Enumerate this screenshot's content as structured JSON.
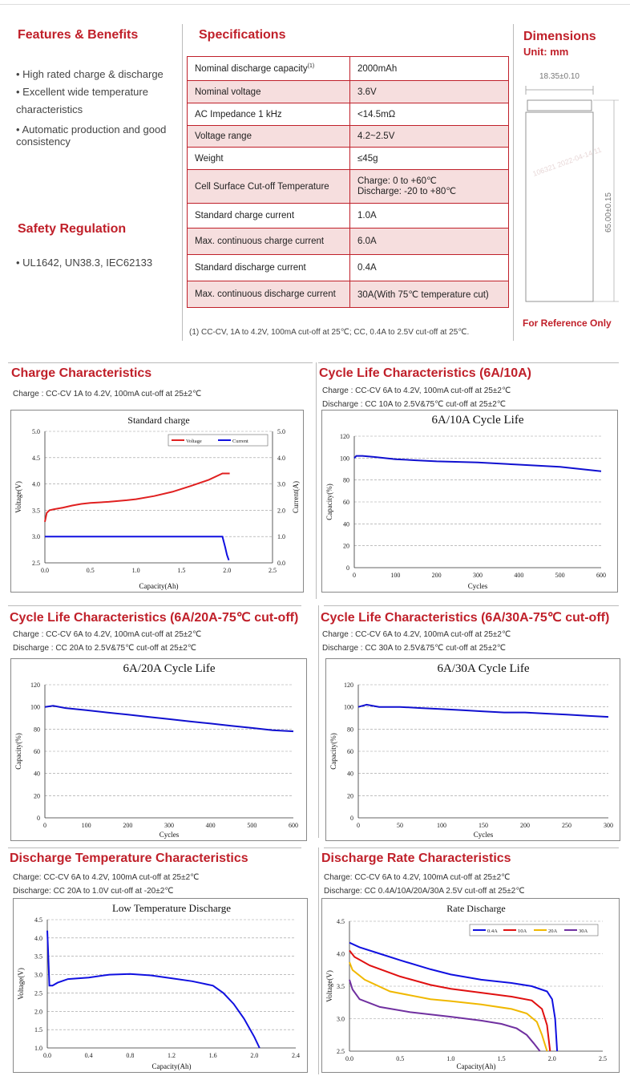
{
  "features": {
    "title": "Features & Benefits",
    "items": [
      "High rated charge & discharge",
      "Excellent wide temperature",
      "characteristics",
      "Automatic production and good consistency"
    ]
  },
  "safety": {
    "title": "Safety Regulation",
    "items": [
      "UL1642, UN38.3, IEC62133"
    ]
  },
  "specs": {
    "title": "Specifications",
    "rows": [
      {
        "label": "Nominal discharge capacity",
        "sup": "(1)",
        "value": "2000mAh"
      },
      {
        "label": "Nominal voltage",
        "value": "3.6V"
      },
      {
        "label": "AC Impedance 1 kHz",
        "value": "<14.5mΩ"
      },
      {
        "label": "Voltage range",
        "value": "4.2~2.5V"
      },
      {
        "label": "Weight",
        "value": "≤45g"
      },
      {
        "label": "Cell Surface Cut-off Temperature",
        "value": "Charge: 0 to +60℃",
        "value2": "Discharge: -20 to +80℃"
      },
      {
        "label": "Standard charge current",
        "value": "1.0A"
      },
      {
        "label": "Max. continuous charge current",
        "value": "6.0A"
      },
      {
        "label": "Standard discharge current",
        "value": "0.4A"
      },
      {
        "label": "Max. continuous discharge current",
        "value": "30A(With 75℃ temperature cut)"
      }
    ],
    "footnote": "(1)   CC-CV, 1A to 4.2V, 100mA cut-off at 25℃; CC, 0.4A to 2.5V cut-off at 25℃."
  },
  "dimensions": {
    "title": "Dimensions",
    "unit": "Unit: mm",
    "diameter": "18.35±0.10",
    "height": "65.00±0.15",
    "note": "For Reference Only",
    "watermark": "106321 2022-04-14 11"
  },
  "sections": {
    "charge": {
      "title": "Charge Characteristics",
      "sub1": "Charge : CC-CV 1A to 4.2V, 100mA cut-off at 25±2℃"
    },
    "cycle10": {
      "title": "Cycle Life Characteristics (6A/10A)",
      "sub1": "Charge : CC-CV 6A to 4.2V, 100mA cut-off at 25±2℃",
      "sub2": "Discharge : CC 10A to 2.5V&75℃ cut-off at 25±2℃"
    },
    "cycle20": {
      "title": "Cycle Life Characteristics (6A/20A-75℃ cut-off)",
      "sub1": "Charge : CC-CV 6A to 4.2V, 100mA cut-off at 25±2℃",
      "sub2": "Discharge : CC 20A to 2.5V&75℃ cut-off at 25±2℃"
    },
    "cycle30": {
      "title": "Cycle Life Characteristics (6A/30A-75℃ cut-off)",
      "sub1": "Charge : CC-CV 6A to 4.2V, 100mA cut-off at 25±2℃",
      "sub2": "Discharge : CC 30A to 2.5V&75℃ cut-off at 25±2℃"
    },
    "temp": {
      "title": "Discharge Temperature Characteristics",
      "sub1": "Charge: CC-CV 6A to 4.2V, 100mA cut-off at 25±2℃",
      "sub2": "Discharge: CC 20A to 1.0V cut-off at -20±2℃"
    },
    "rate": {
      "title": "Discharge Rate Characteristics",
      "sub1": "Charge: CC-CV 6A to 4.2V, 100mA cut-off at 25±2℃",
      "sub2": "Discharge: CC 0.4A/10A/20A/30A 2.5V cut-off at 25±2℃"
    }
  },
  "chart_data": [
    {
      "id": "charge",
      "type": "line",
      "title": "Standard charge",
      "xlabel": "Capacity(Ah)",
      "ylabel": "Voltage(V)",
      "y2label": "Current(A)",
      "xlim": [
        0,
        2.5
      ],
      "ylim": [
        2.5,
        5.0
      ],
      "y2lim": [
        0,
        5.0
      ],
      "xticks": [
        "0.0",
        "0.5",
        "1.0",
        "1.5",
        "2.0",
        "2.5"
      ],
      "yticks": [
        "2.5",
        "3.0",
        "3.5",
        "4.0",
        "4.5",
        "5.0"
      ],
      "y2ticks": [
        "0.0",
        "1.0",
        "2.0",
        "3.0",
        "4.0",
        "5.0"
      ],
      "legend": "top-right",
      "series": [
        {
          "name": "Voltage",
          "color": "#e02020",
          "axis": "y",
          "x": [
            0.0,
            0.02,
            0.05,
            0.1,
            0.2,
            0.3,
            0.4,
            0.5,
            0.7,
            0.9,
            1.0,
            1.2,
            1.4,
            1.6,
            1.8,
            1.95,
            2.0,
            2.03
          ],
          "y": [
            3.28,
            3.45,
            3.5,
            3.52,
            3.55,
            3.59,
            3.62,
            3.64,
            3.66,
            3.69,
            3.71,
            3.77,
            3.85,
            3.96,
            4.08,
            4.2,
            4.2,
            4.2
          ]
        },
        {
          "name": "Current",
          "color": "#1010e0",
          "axis": "y2",
          "x": [
            0.0,
            0.5,
            1.0,
            1.5,
            1.9,
            1.95,
            1.98,
            2.0,
            2.02
          ],
          "y": [
            1.0,
            1.0,
            1.0,
            1.0,
            1.0,
            1.0,
            0.6,
            0.3,
            0.1
          ]
        }
      ]
    },
    {
      "id": "cycle10",
      "type": "line",
      "title": "6A/10A Cycle Life",
      "xlabel": "Cycles",
      "ylabel": "Capacity(%)",
      "xlim": [
        0,
        600
      ],
      "ylim": [
        0,
        120
      ],
      "xticks": [
        "0",
        "100",
        "200",
        "300",
        "400",
        "500",
        "600"
      ],
      "yticks": [
        "0",
        "20",
        "40",
        "60",
        "80",
        "100",
        "120"
      ],
      "series": [
        {
          "color": "#1010d0",
          "x": [
            0,
            5,
            20,
            50,
            100,
            150,
            200,
            300,
            400,
            500,
            550,
            600
          ],
          "y": [
            100,
            102,
            102,
            101,
            99,
            98,
            97,
            96,
            94,
            92,
            90,
            88
          ]
        }
      ]
    },
    {
      "id": "cycle20",
      "type": "line",
      "title": "6A/20A Cycle Life",
      "xlabel": "Cycles",
      "ylabel": "Capacity(%)",
      "xlim": [
        0,
        600
      ],
      "ylim": [
        0,
        120
      ],
      "xticks": [
        "0",
        "100",
        "200",
        "300",
        "400",
        "500",
        "600"
      ],
      "yticks": [
        "0",
        "20",
        "40",
        "60",
        "80",
        "100",
        "120"
      ],
      "series": [
        {
          "color": "#1010d0",
          "x": [
            0,
            20,
            50,
            100,
            150,
            200,
            250,
            300,
            350,
            400,
            450,
            500,
            550,
            600
          ],
          "y": [
            100,
            101,
            99,
            97,
            95,
            93,
            91,
            89,
            87,
            85,
            83,
            81,
            79,
            78
          ]
        }
      ]
    },
    {
      "id": "cycle30",
      "type": "line",
      "title": "6A/30A Cycle Life",
      "xlabel": "Cycles",
      "ylabel": "Capacity(%)",
      "xlim": [
        0,
        300
      ],
      "ylim": [
        0,
        120
      ],
      "xticks": [
        "0",
        "50",
        "100",
        "150",
        "200",
        "250",
        "300"
      ],
      "yticks": [
        "0",
        "20",
        "40",
        "60",
        "80",
        "100",
        "120"
      ],
      "series": [
        {
          "color": "#1010d0",
          "x": [
            0,
            10,
            25,
            50,
            75,
            100,
            125,
            150,
            175,
            200,
            225,
            250,
            275,
            300
          ],
          "y": [
            100,
            102,
            100,
            100,
            99,
            98,
            97,
            96,
            95,
            95,
            94,
            93,
            92,
            91
          ]
        }
      ]
    },
    {
      "id": "temp",
      "type": "line",
      "title": "Low Temperature Discharge",
      "xlabel": "Capacity(Ah)",
      "ylabel": "Voltage(V)",
      "xlim": [
        0,
        2.4
      ],
      "ylim": [
        1.0,
        4.5
      ],
      "xticks": [
        "0.0",
        "0.4",
        "0.8",
        "1.2",
        "1.6",
        "2.0",
        "2.4"
      ],
      "yticks": [
        "1.0",
        "1.5",
        "2.0",
        "2.5",
        "3.0",
        "3.5",
        "4.0",
        "4.5"
      ],
      "series": [
        {
          "color": "#1010e0",
          "x": [
            0,
            0.01,
            0.02,
            0.05,
            0.1,
            0.2,
            0.4,
            0.6,
            0.8,
            1.0,
            1.2,
            1.4,
            1.6,
            1.7,
            1.8,
            1.9,
            2.0,
            2.05
          ],
          "y": [
            4.2,
            3.5,
            2.7,
            2.7,
            2.78,
            2.88,
            2.92,
            3.0,
            3.02,
            2.98,
            2.9,
            2.82,
            2.7,
            2.5,
            2.2,
            1.8,
            1.3,
            1.0
          ]
        }
      ]
    },
    {
      "id": "rate",
      "type": "line",
      "title": "Rate Discharge",
      "xlabel": "Capacity(Ah)",
      "ylabel": "Voltage(V)",
      "xlim": [
        0,
        2.5
      ],
      "ylim": [
        2.5,
        4.5
      ],
      "xticks": [
        "0.0",
        "0.5",
        "1.0",
        "1.5",
        "2.0",
        "2.5"
      ],
      "yticks": [
        "2.5",
        "3.0",
        "3.5",
        "4.0",
        "4.5"
      ],
      "legend": "top-right",
      "series": [
        {
          "name": "0.4A",
          "color": "#1010e0",
          "x": [
            0,
            0.1,
            0.3,
            0.5,
            0.8,
            1.0,
            1.3,
            1.6,
            1.8,
            1.95,
            2.0,
            2.03,
            2.05
          ],
          "y": [
            4.17,
            4.1,
            4.0,
            3.9,
            3.76,
            3.68,
            3.6,
            3.55,
            3.5,
            3.42,
            3.3,
            3.0,
            2.5
          ]
        },
        {
          "name": "10A",
          "color": "#e01010",
          "x": [
            0,
            0.05,
            0.2,
            0.5,
            0.8,
            1.0,
            1.3,
            1.6,
            1.8,
            1.9,
            1.95,
            1.98
          ],
          "y": [
            4.05,
            3.95,
            3.82,
            3.65,
            3.52,
            3.46,
            3.4,
            3.34,
            3.28,
            3.15,
            2.9,
            2.5
          ]
        },
        {
          "name": "20A",
          "color": "#f0b800",
          "x": [
            0,
            0.03,
            0.15,
            0.4,
            0.8,
            1.0,
            1.3,
            1.6,
            1.75,
            1.85,
            1.9,
            1.95
          ],
          "y": [
            3.87,
            3.75,
            3.6,
            3.42,
            3.3,
            3.27,
            3.22,
            3.15,
            3.08,
            2.95,
            2.75,
            2.5
          ]
        },
        {
          "name": "30A",
          "color": "#7030a0",
          "x": [
            0,
            0.03,
            0.1,
            0.3,
            0.6,
            1.0,
            1.3,
            1.5,
            1.65,
            1.75,
            1.82,
            1.88
          ],
          "y": [
            3.6,
            3.45,
            3.3,
            3.18,
            3.1,
            3.03,
            2.97,
            2.92,
            2.85,
            2.75,
            2.62,
            2.5
          ]
        }
      ]
    }
  ]
}
